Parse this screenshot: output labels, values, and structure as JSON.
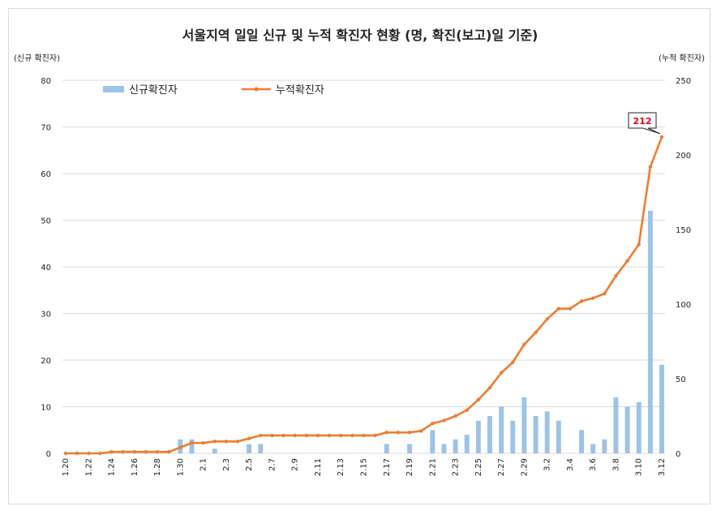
{
  "chart_data": {
    "type": "bar+line",
    "title": "서울지역 일일 신규 및 누적 확진자 현황 (명, 확진(보고)일 기준)",
    "ylabel_left": "(신규 확진자)",
    "ylabel_right": "(누적 확진자)",
    "ylim_left": [
      0,
      80
    ],
    "ylim_right": [
      0,
      250
    ],
    "yticks_left": [
      "0",
      "10",
      "20",
      "30",
      "40",
      "50",
      "60",
      "70",
      "80"
    ],
    "yticks_right": [
      "0",
      "50",
      "100",
      "150",
      "200",
      "250"
    ],
    "grid": true,
    "legend_position": "top-left",
    "categories": [
      "1.20",
      "1.21",
      "1.22",
      "1.23",
      "1.24",
      "1.25",
      "1.26",
      "1.27",
      "1.28",
      "1.29",
      "1.30",
      "1.31",
      "2.1",
      "2.2",
      "2.3",
      "2.4",
      "2.5",
      "2.6",
      "2.7",
      "2.8",
      "2.9",
      "2.10",
      "2.11",
      "2.12",
      "2.13",
      "2.14",
      "2.15",
      "2.16",
      "2.17",
      "2.18",
      "2.19",
      "2.20",
      "2.21",
      "2.22",
      "2.23",
      "2.24",
      "2.25",
      "2.26",
      "2.27",
      "2.28",
      "2.29",
      "3.1",
      "3.2",
      "3.3",
      "3.4",
      "3.5",
      "3.6",
      "3.7",
      "3.8",
      "3.9",
      "3.10",
      "3.11",
      "3.12"
    ],
    "xtick_labels": [
      "1.20",
      "1.22",
      "1.24",
      "1.26",
      "1.28",
      "1.30",
      "2.1",
      "2.3",
      "2.5",
      "2.7",
      "2.9",
      "2.11",
      "2.13",
      "2.15",
      "2.17",
      "2.19",
      "2.21",
      "2.23",
      "2.25",
      "2.27",
      "2.29",
      "3.2",
      "3.4",
      "3.6",
      "3.8",
      "3.10",
      "3.12"
    ],
    "series": [
      {
        "name": "신규확진자",
        "kind": "bar",
        "axis": "left",
        "color": "#9dc3e6",
        "values": [
          0,
          0,
          0,
          0,
          0,
          0,
          0,
          0,
          0,
          0,
          3,
          3,
          0,
          1,
          0,
          0,
          2,
          2,
          0,
          0,
          0,
          0,
          0,
          0,
          0,
          0,
          0,
          0,
          2,
          0,
          2,
          0,
          5,
          2,
          3,
          4,
          7,
          8,
          10,
          7,
          12,
          8,
          9,
          7,
          0,
          5,
          2,
          3,
          12,
          10,
          11,
          52,
          19
        ]
      },
      {
        "name": "누적확진자",
        "kind": "line",
        "axis": "right",
        "color": "#ed7d31",
        "values": [
          0,
          0,
          0,
          0,
          1,
          1,
          1,
          1,
          1,
          1,
          4,
          7,
          7,
          8,
          8,
          8,
          10,
          12,
          12,
          12,
          12,
          12,
          12,
          12,
          12,
          12,
          12,
          12,
          14,
          14,
          14,
          15,
          20,
          22,
          25,
          29,
          36,
          44,
          54,
          61,
          73,
          81,
          90,
          97,
          97,
          102,
          104,
          107,
          119,
          129,
          140,
          192,
          212
        ]
      }
    ],
    "annotation": "212"
  }
}
